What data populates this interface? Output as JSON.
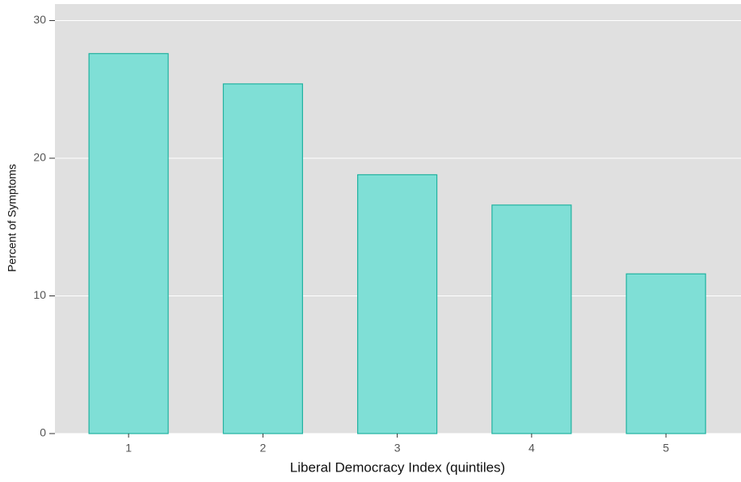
{
  "chart_data": {
    "type": "bar",
    "x_label": "Liberal Democracy Index (quintiles)",
    "y_label": "Percent of Symptoms",
    "categories": [
      "1",
      "2",
      "3",
      "4",
      "5"
    ],
    "values": [
      27.6,
      25.4,
      18.8,
      16.6,
      11.6
    ],
    "color": "#7fdfd6",
    "edge_color": "#20b2a0",
    "ylim": [
      0,
      31.2
    ],
    "yticks": [
      0,
      10,
      20,
      30
    ],
    "grid": true
  }
}
